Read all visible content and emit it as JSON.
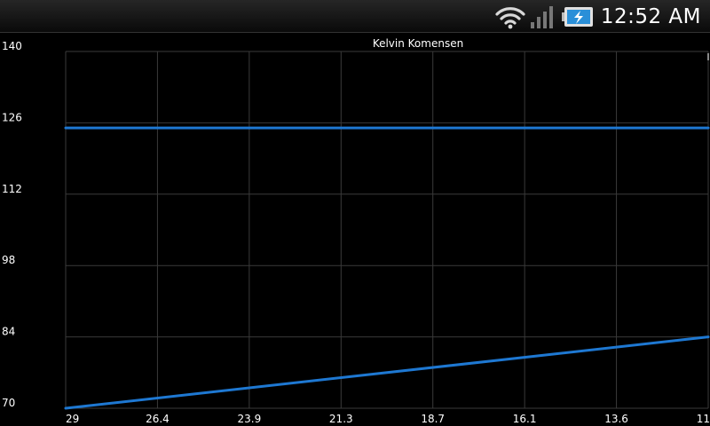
{
  "status_bar": {
    "time": "12:52 AM",
    "icons": [
      "wifi-icon",
      "signal-icon",
      "battery-charging-icon"
    ],
    "battery_color": "#2a8fd8"
  },
  "chart_data": {
    "type": "line",
    "title": "Kelvin Komensen",
    "xlabel": "",
    "ylabel": "",
    "x_ticks": [
      "29",
      "26.4",
      "23.9",
      "21.3",
      "18.7",
      "16.1",
      "13.6",
      "11"
    ],
    "y_ticks": [
      "140",
      "126",
      "112",
      "98",
      "84",
      "70"
    ],
    "xlim": [
      29,
      11
    ],
    "ylim": [
      70,
      140
    ],
    "grid": true,
    "series": [
      {
        "color": "#1e78d2",
        "x": [
          29,
          11
        ],
        "y": [
          125,
          125
        ]
      },
      {
        "color": "#1e78d2",
        "x": [
          29,
          11
        ],
        "y": [
          70,
          84
        ]
      }
    ]
  }
}
